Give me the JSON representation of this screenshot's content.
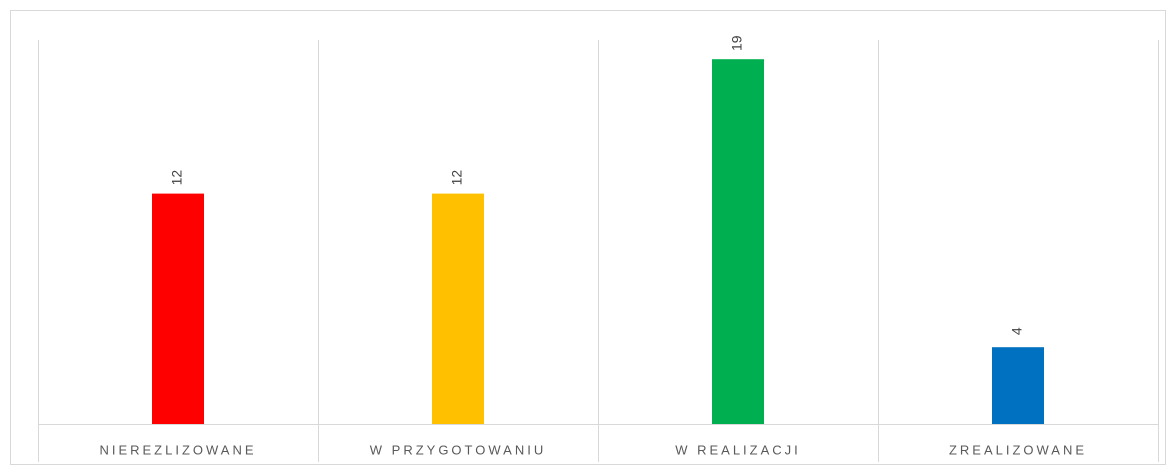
{
  "chart_data": {
    "type": "bar",
    "categories": [
      "NIEREZLIZOWANE",
      "W PRZYGOTOWANIU",
      "W REALIZACJI",
      "ZREALIZOWANE"
    ],
    "values": [
      12,
      12,
      19,
      4
    ],
    "colors": [
      "#ff0000",
      "#ffc000",
      "#00b050",
      "#0070c0"
    ],
    "ylim": [
      0,
      20
    ]
  }
}
